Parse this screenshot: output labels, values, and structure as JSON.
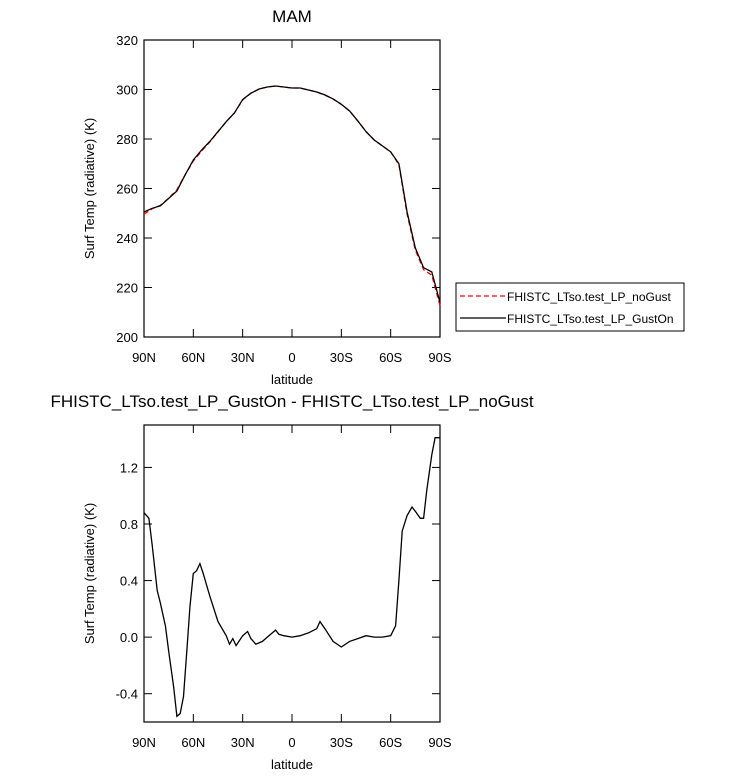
{
  "chart_data": [
    {
      "type": "line",
      "title": "MAM",
      "xlabel": "latitude",
      "ylabel": "Surf Temp (radiative) (K)",
      "x": [
        90,
        85,
        80,
        75,
        70,
        65,
        60,
        55,
        50,
        45,
        40,
        35,
        30,
        25,
        20,
        15,
        10,
        5,
        0,
        -5,
        -10,
        -15,
        -20,
        -25,
        -30,
        -35,
        -40,
        -45,
        -50,
        -55,
        -60,
        -65,
        -70,
        -75,
        -80,
        -85,
        -90
      ],
      "xlim": [
        90,
        -90
      ],
      "xticks": [
        {
          "value": 90,
          "label": "90N"
        },
        {
          "value": 60,
          "label": "60N"
        },
        {
          "value": 30,
          "label": "30N"
        },
        0,
        {
          "value": -30,
          "label": "30S"
        },
        {
          "value": -60,
          "label": "60S"
        },
        {
          "value": -90,
          "label": "90S"
        }
      ],
      "ylim": [
        200,
        320
      ],
      "yticks": [
        200,
        220,
        240,
        260,
        280,
        300,
        320
      ],
      "legend": "right",
      "series": [
        {
          "name": "FHISTC_LTso.test_LP_noGust",
          "color": "#ff0000",
          "dash": true,
          "values": [
            249.6,
            251.8,
            253.2,
            256.1,
            259.5,
            265.5,
            271.1,
            275.1,
            278.8,
            282.9,
            287,
            290.5,
            295.8,
            298.5,
            300.2,
            301,
            301.4,
            301,
            300.6,
            300.6,
            299.8,
            299,
            297.7,
            296.2,
            294,
            291.3,
            287.3,
            283,
            279.6,
            277.2,
            274.8,
            269.6,
            249.6,
            235.1,
            227.2,
            225,
            212.6
          ]
        },
        {
          "name": "FHISTC_LTso.test_LP_GustOn",
          "color": "#000000",
          "dash": false,
          "values": [
            250.5,
            252,
            253,
            256,
            259,
            265.5,
            271.5,
            275.5,
            279,
            283,
            287,
            290.5,
            296,
            298.5,
            300.2,
            301,
            301.4,
            301,
            300.6,
            300.6,
            299.8,
            299,
            297.8,
            296.2,
            294,
            291.3,
            287.3,
            283,
            279.6,
            277.2,
            274.8,
            270,
            250.5,
            236,
            228,
            226.3,
            214
          ]
        }
      ]
    },
    {
      "type": "line",
      "title": "FHISTC_LTso.test_LP_GustOn - FHISTC_LTso.test_LP_noGust",
      "xlabel": "latitude",
      "ylabel": "Surf Temp (radiative) (K)",
      "x": [
        90,
        87,
        85,
        82,
        80,
        77,
        75,
        72,
        70,
        68,
        66,
        64,
        62,
        60,
        58,
        56,
        54,
        50,
        45,
        40,
        38,
        36,
        34,
        30,
        27,
        25,
        22,
        18,
        15,
        12,
        10,
        8,
        5,
        0,
        -5,
        -10,
        -15,
        -17,
        -20,
        -25,
        -30,
        -35,
        -40,
        -45,
        -50,
        -55,
        -60,
        -63,
        -65,
        -67,
        -70,
        -73,
        -75,
        -78,
        -80,
        -82,
        -85,
        -87,
        -90
      ],
      "xlim": [
        90,
        -90
      ],
      "xticks": [
        {
          "value": 90,
          "label": "90N"
        },
        {
          "value": 60,
          "label": "60N"
        },
        {
          "value": 30,
          "label": "30N"
        },
        0,
        {
          "value": -30,
          "label": "30S"
        },
        {
          "value": -60,
          "label": "60S"
        },
        {
          "value": -90,
          "label": "90S"
        }
      ],
      "ylim": [
        -0.6,
        1.5
      ],
      "yticks": [
        -0.4,
        {
          "value": 0,
          "label": "0.0"
        },
        0.4,
        0.8,
        1.2
      ],
      "series": [
        {
          "color": "#000000",
          "dash": false,
          "values": [
            0.88,
            0.84,
            0.65,
            0.33,
            0.24,
            0.08,
            -0.1,
            -0.35,
            -0.56,
            -0.54,
            -0.42,
            -0.1,
            0.22,
            0.45,
            0.47,
            0.52,
            0.45,
            0.29,
            0.11,
            0.01,
            -0.05,
            -0.01,
            -0.06,
            0.01,
            0.04,
            -0.01,
            -0.05,
            -0.03,
            0,
            0.03,
            0.05,
            0.02,
            0.01,
            0,
            0.01,
            0.03,
            0.06,
            0.11,
            0.06,
            -0.03,
            -0.07,
            -0.03,
            -0.01,
            0.01,
            0,
            0,
            0.01,
            0.08,
            0.4,
            0.75,
            0.86,
            0.92,
            0.89,
            0.84,
            0.84,
            1.04,
            1.29,
            1.41,
            1.41
          ]
        }
      ]
    }
  ]
}
